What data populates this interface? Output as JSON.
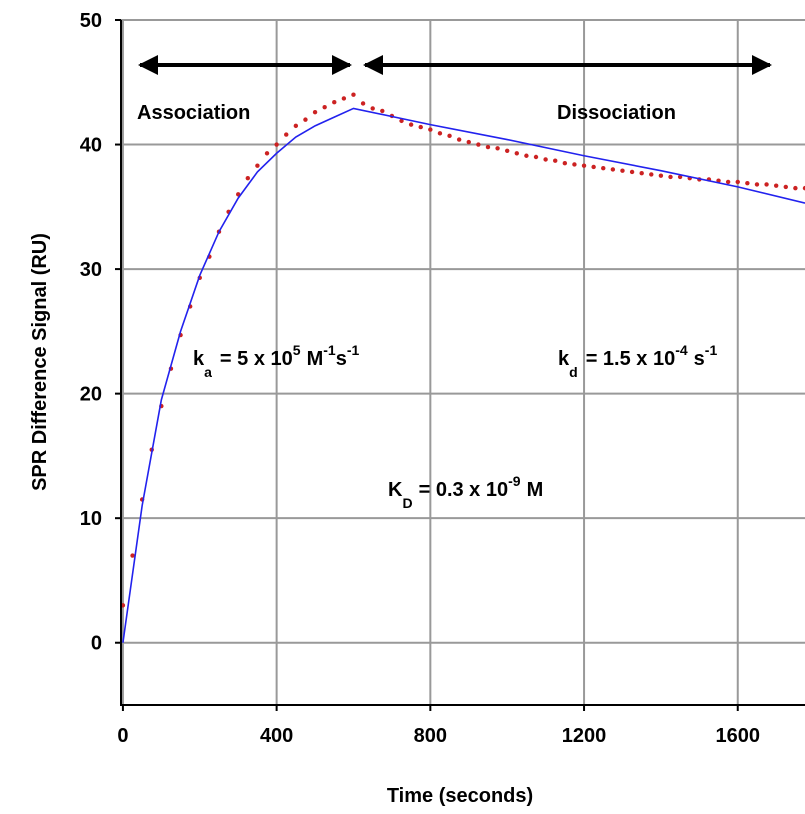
{
  "chart_data": {
    "type": "line",
    "x_label": "Time (seconds)",
    "y_label": "SPR Difference Signal (RU)",
    "xlim": [
      -5,
      1775
    ],
    "ylim": [
      -5,
      50
    ],
    "xticks": [
      0,
      400,
      800,
      1200,
      1600
    ],
    "yticks": [
      0,
      10,
      20,
      30,
      40,
      50
    ],
    "grid": true,
    "series": [
      {
        "style": "points",
        "color": "#cc2222",
        "x": [
          0,
          25,
          50,
          75,
          100,
          125,
          150,
          175,
          200,
          225,
          250,
          275,
          300,
          325,
          350,
          375,
          400,
          425,
          450,
          475,
          500,
          525,
          550,
          575,
          600,
          625,
          650,
          675,
          700,
          725,
          750,
          775,
          800,
          825,
          850,
          875,
          900,
          925,
          950,
          975,
          1000,
          1025,
          1050,
          1075,
          1100,
          1125,
          1150,
          1175,
          1200,
          1225,
          1250,
          1275,
          1300,
          1325,
          1350,
          1375,
          1400,
          1425,
          1450,
          1475,
          1500,
          1525,
          1550,
          1575,
          1600,
          1625,
          1650,
          1675,
          1700,
          1725,
          1750,
          1775
        ],
        "values": [
          3,
          7,
          11.5,
          15.5,
          19,
          22,
          24.7,
          27,
          29.3,
          31,
          33,
          34.6,
          36,
          37.3,
          38.3,
          39.3,
          40,
          40.8,
          41.5,
          42,
          42.6,
          43,
          43.4,
          43.7,
          44,
          43.3,
          42.9,
          42.7,
          42.3,
          41.9,
          41.6,
          41.4,
          41.2,
          40.9,
          40.7,
          40.4,
          40.2,
          40,
          39.8,
          39.7,
          39.5,
          39.3,
          39.1,
          39,
          38.8,
          38.7,
          38.5,
          38.4,
          38.3,
          38.2,
          38.1,
          38,
          37.9,
          37.8,
          37.7,
          37.6,
          37.5,
          37.4,
          37.4,
          37.3,
          37.2,
          37.2,
          37.1,
          37,
          37,
          36.9,
          36.8,
          36.8,
          36.7,
          36.6,
          36.5,
          36.5
        ]
      },
      {
        "style": "line",
        "color": "#2222ee",
        "x": [
          0,
          50,
          100,
          150,
          200,
          250,
          300,
          350,
          400,
          450,
          500,
          550,
          600,
          800,
          1000,
          1200,
          1400,
          1600,
          1775
        ],
        "values": [
          0,
          11,
          19.5,
          25,
          29.5,
          33,
          35.7,
          37.8,
          39.3,
          40.6,
          41.5,
          42.2,
          42.9,
          41.6,
          40.4,
          39.1,
          37.9,
          36.6,
          35.3
        ]
      }
    ],
    "annotations": {
      "association": "Association",
      "dissociation": "Dissociation",
      "ka": [
        "k",
        "a",
        "= 5 x 10",
        "5",
        "M",
        "-1",
        "s",
        "-1"
      ],
      "kd": [
        "k",
        "d",
        "= 1.5 x 10",
        "-4",
        "s",
        "-1"
      ],
      "KD": [
        "K",
        "D",
        "= 0.3 x 10",
        "-9",
        "M"
      ]
    }
  }
}
